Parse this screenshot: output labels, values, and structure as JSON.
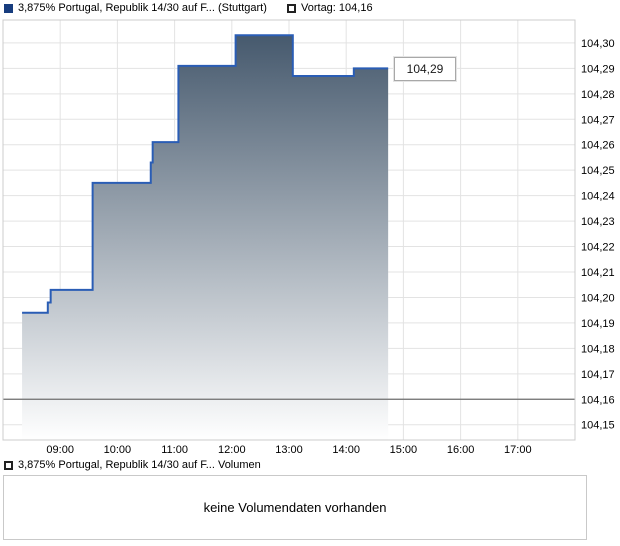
{
  "legend": {
    "series_label": "3,875% Portugal, Republik 14/30 auf F... (Stuttgart)",
    "vortag_label": "Vortag: 104,16"
  },
  "price_label": "104,29",
  "volume": {
    "header": "3,875% Portugal, Republik 14/30 auf F... Volumen",
    "empty_message": "keine Volumendaten vorhanden"
  },
  "colors": {
    "line": "#2a5db5",
    "gradient_top": "#3f5368",
    "gradient_bottom": "#ffffff",
    "grid": "#e3e3e3",
    "border": "#cccccc",
    "vortag_line": "#6e6e6e",
    "legend_square": "#173c7e",
    "text": "#000000"
  },
  "chart_data": {
    "type": "area",
    "title": "3,875% Portugal, Republik 14/30 auf F... (Stuttgart)",
    "exchange": "Stuttgart",
    "previous_close": 104.16,
    "last_price": 104.29,
    "x_ticks": [
      "09:00",
      "10:00",
      "11:00",
      "12:00",
      "13:00",
      "14:00",
      "15:00",
      "16:00",
      "17:00"
    ],
    "y_tick_values": [
      104.3,
      104.29,
      104.28,
      104.27,
      104.26,
      104.25,
      104.24,
      104.23,
      104.22,
      104.21,
      104.2,
      104.19,
      104.18,
      104.17,
      104.16,
      104.15
    ],
    "ylim": [
      104.144,
      104.309
    ],
    "xlim_hours": [
      8.0,
      18.0
    ],
    "grid": true,
    "legend_position": "top",
    "step_points": [
      {
        "time": "08:20",
        "price": 104.194
      },
      {
        "time": "08:47",
        "price": 104.198
      },
      {
        "time": "08:50",
        "price": 104.203
      },
      {
        "time": "09:34",
        "price": 104.245
      },
      {
        "time": "10:35",
        "price": 104.253
      },
      {
        "time": "10:37",
        "price": 104.261
      },
      {
        "time": "11:04",
        "price": 104.291
      },
      {
        "time": "12:04",
        "price": 104.303
      },
      {
        "time": "13:04",
        "price": 104.287
      },
      {
        "time": "14:08",
        "price": 104.29
      }
    ],
    "end_time": "14:44"
  }
}
